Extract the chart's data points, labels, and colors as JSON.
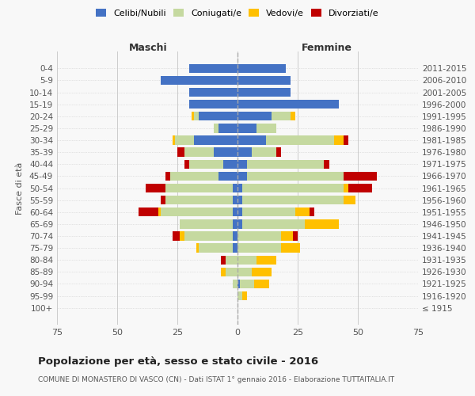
{
  "age_groups": [
    "100+",
    "95-99",
    "90-94",
    "85-89",
    "80-84",
    "75-79",
    "70-74",
    "65-69",
    "60-64",
    "55-59",
    "50-54",
    "45-49",
    "40-44",
    "35-39",
    "30-34",
    "25-29",
    "20-24",
    "15-19",
    "10-14",
    "5-9",
    "0-4"
  ],
  "birth_years": [
    "≤ 1915",
    "1916-1920",
    "1921-1925",
    "1926-1930",
    "1931-1935",
    "1936-1940",
    "1941-1945",
    "1946-1950",
    "1951-1955",
    "1956-1960",
    "1961-1965",
    "1966-1970",
    "1971-1975",
    "1976-1980",
    "1981-1985",
    "1986-1990",
    "1991-1995",
    "1996-2000",
    "2001-2005",
    "2006-2010",
    "2011-2015"
  ],
  "males": {
    "celibi": [
      0,
      0,
      0,
      0,
      0,
      2,
      2,
      2,
      2,
      2,
      2,
      8,
      6,
      10,
      18,
      8,
      16,
      20,
      20,
      32,
      20
    ],
    "coniugati": [
      0,
      0,
      2,
      5,
      5,
      14,
      20,
      22,
      30,
      28,
      28,
      20,
      14,
      12,
      8,
      2,
      2,
      0,
      0,
      0,
      0
    ],
    "vedovi": [
      0,
      0,
      0,
      2,
      0,
      1,
      2,
      0,
      1,
      0,
      0,
      0,
      0,
      0,
      1,
      0,
      1,
      0,
      0,
      0,
      0
    ],
    "divorziati": [
      0,
      0,
      0,
      0,
      2,
      0,
      3,
      0,
      8,
      2,
      8,
      2,
      2,
      3,
      0,
      0,
      0,
      0,
      0,
      0,
      0
    ]
  },
  "females": {
    "nubili": [
      0,
      0,
      1,
      0,
      0,
      0,
      0,
      2,
      2,
      2,
      2,
      4,
      4,
      6,
      12,
      8,
      14,
      42,
      22,
      22,
      20
    ],
    "coniugate": [
      0,
      2,
      6,
      6,
      8,
      18,
      18,
      26,
      22,
      42,
      42,
      40,
      32,
      10,
      28,
      8,
      8,
      0,
      0,
      0,
      0
    ],
    "vedove": [
      0,
      2,
      6,
      8,
      8,
      8,
      5,
      14,
      6,
      5,
      2,
      0,
      0,
      0,
      4,
      0,
      2,
      0,
      0,
      0,
      0
    ],
    "divorziate": [
      0,
      0,
      0,
      0,
      0,
      0,
      2,
      0,
      2,
      0,
      10,
      14,
      2,
      2,
      2,
      0,
      0,
      0,
      0,
      0,
      0
    ]
  },
  "colors": {
    "celibi_nubili": "#4472c4",
    "coniugati": "#c5d9a0",
    "vedovi": "#ffc000",
    "divorziati": "#c00000"
  },
  "xlim": 75,
  "title": "Popolazione per età, sesso e stato civile - 2016",
  "subtitle": "COMUNE DI MONASTERO DI VASCO (CN) - Dati ISTAT 1° gennaio 2016 - Elaborazione TUTTAITALIA.IT",
  "ylabel_left": "Fasce di età",
  "xlabel_left": "Maschi",
  "xlabel_right": "Femmine",
  "bg_color": "#f8f8f8",
  "grid_color": "#cccccc"
}
